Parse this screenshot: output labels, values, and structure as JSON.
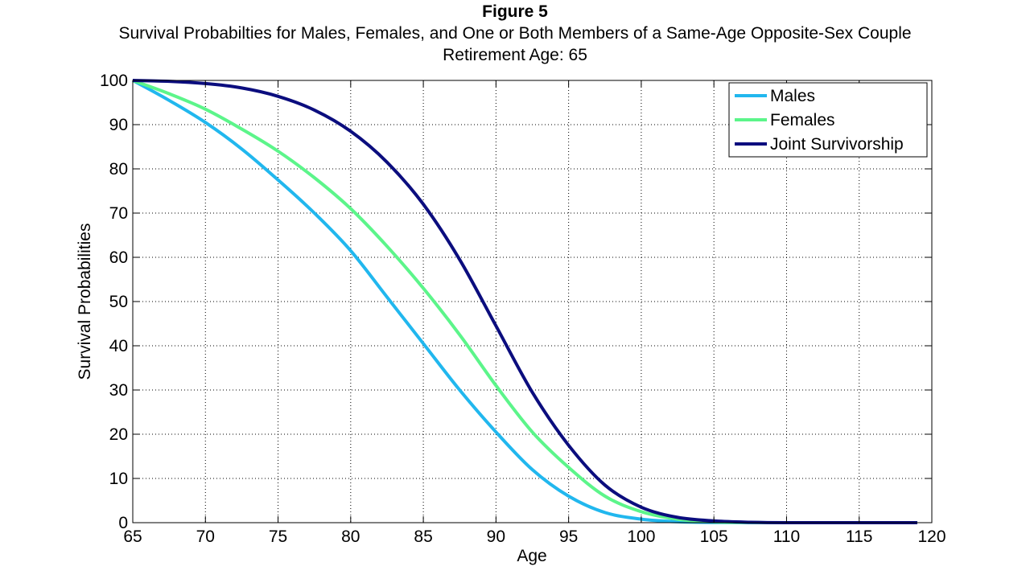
{
  "figure_label": "Figure 5",
  "chart_data": {
    "type": "line",
    "title": "Survival Probabilties for Males, Females, and One or Both Members of a Same-Age Opposite-Sex Couple",
    "subtitle": "Retirement Age: 65",
    "xlabel": "Age",
    "ylabel": "Survival Probabilities",
    "xlim": [
      65,
      120
    ],
    "ylim": [
      0,
      100
    ],
    "xticks": [
      65,
      70,
      75,
      80,
      85,
      90,
      95,
      100,
      105,
      110,
      115,
      120
    ],
    "yticks": [
      0,
      10,
      20,
      30,
      40,
      50,
      60,
      70,
      80,
      90,
      100
    ],
    "grid": true,
    "legend_position": "top-right",
    "x": [
      65,
      67.5,
      70,
      72.5,
      75,
      77.5,
      80,
      82.5,
      85,
      87.5,
      90,
      92.5,
      95,
      97.5,
      100,
      102.5,
      105,
      107.5,
      110,
      115,
      119
    ],
    "series": [
      {
        "name": "Males",
        "color": "#21b7ee",
        "values": [
          100,
          95.5,
          90.5,
          84.5,
          77.5,
          70,
          61.5,
          51,
          40.5,
          30,
          20.5,
          12,
          6,
          2.3,
          0.8,
          0.2,
          0.05,
          0,
          0,
          0,
          0
        ]
      },
      {
        "name": "Females",
        "color": "#5cf58a",
        "values": [
          100,
          97,
          93.5,
          89,
          84,
          78,
          71,
          62.5,
          53,
          42.5,
          31,
          20.5,
          12.5,
          6,
          2.5,
          0.8,
          0.2,
          0.05,
          0,
          0,
          0
        ]
      },
      {
        "name": "Joint Survivorship",
        "color": "#0b0d7e",
        "values": [
          100,
          99.8,
          99.3,
          98.3,
          96.4,
          93.3,
          88.5,
          81.5,
          72,
          59.5,
          44.5,
          29.5,
          17.5,
          8.5,
          3.5,
          1.2,
          0.4,
          0.1,
          0,
          0,
          0
        ]
      }
    ]
  }
}
